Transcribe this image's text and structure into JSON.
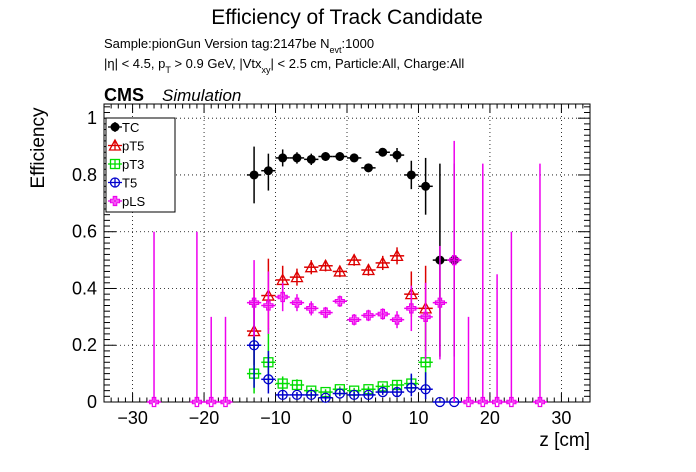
{
  "chart_data": {
    "type": "scatter",
    "title": "Efficiency of Track Candidate",
    "subtitle_line1": "Sample:pionGun   Version tag:2147be  N",
    "subtitle_line1_sub": "evt",
    "subtitle_line1_end": ":1000",
    "subtitle_line2_parts": [
      "|η| < 4.5, p",
      "T",
      " > 0.9 GeV, |Vtx",
      "xy",
      "| < 2.5 cm, Particle:All, Charge:All"
    ],
    "cms_label": "CMS",
    "simulation_label": "Simulation",
    "xlabel": "z [cm]",
    "ylabel": "Efficiency",
    "xlim": [
      -34,
      34
    ],
    "ylim": [
      0,
      1.05
    ],
    "xticks": [
      -30,
      -20,
      -10,
      0,
      10,
      20,
      30
    ],
    "xtick_labels": [
      "−30",
      "−20",
      "−10",
      "0",
      "10",
      "20",
      "30"
    ],
    "yticks": [
      0,
      0.2,
      0.4,
      0.6,
      0.8,
      1
    ],
    "ytick_labels": [
      "0",
      "0.2",
      "0.4",
      "0.6",
      "0.8",
      "1"
    ],
    "grid": true,
    "legend_position": "top-left",
    "series": [
      {
        "name": "TC",
        "color": "#000000",
        "marker": "filled-circle",
        "points": [
          {
            "x": -13,
            "y": 0.8,
            "yerr": [
              0.1,
              0.1
            ]
          },
          {
            "x": -11,
            "y": 0.815,
            "yerr": [
              0.07,
              0.06
            ]
          },
          {
            "x": -9,
            "y": 0.86,
            "yerr": [
              0.03,
              0.03
            ]
          },
          {
            "x": -7,
            "y": 0.86,
            "yerr": [
              0.02,
              0.02
            ]
          },
          {
            "x": -5,
            "y": 0.855,
            "yerr": [
              0.02,
              0.02
            ]
          },
          {
            "x": -3,
            "y": 0.865,
            "yerr": [
              0.015,
              0.015
            ]
          },
          {
            "x": -1,
            "y": 0.865,
            "yerr": [
              0.015,
              0.015
            ]
          },
          {
            "x": 1,
            "y": 0.86,
            "yerr": [
              0.015,
              0.015
            ]
          },
          {
            "x": 3,
            "y": 0.825,
            "yerr": [
              0.015,
              0.015
            ]
          },
          {
            "x": 5,
            "y": 0.88,
            "yerr": [
              0.015,
              0.015
            ]
          },
          {
            "x": 7,
            "y": 0.87,
            "yerr": [
              0.025,
              0.025
            ]
          },
          {
            "x": 9,
            "y": 0.8,
            "yerr": [
              0.05,
              0.05
            ]
          },
          {
            "x": 11,
            "y": 0.76,
            "yerr": [
              0.1,
              0.1
            ]
          },
          {
            "x": 13,
            "y": 0.5,
            "yerr": [
              0.34,
              0.34
            ]
          },
          {
            "x": 15,
            "y": 0.5,
            "yerr": [
              0.34,
              0.34
            ]
          }
        ]
      },
      {
        "name": "pT5",
        "color": "#dd0000",
        "marker": "open-triangle",
        "points": [
          {
            "x": -13,
            "y": 0.25,
            "yerr": [
              0.12,
              0.15
            ]
          },
          {
            "x": -11,
            "y": 0.375,
            "yerr": [
              0.12,
              0.13
            ]
          },
          {
            "x": -9,
            "y": 0.43,
            "yerr": [
              0.05,
              0.05
            ]
          },
          {
            "x": -7,
            "y": 0.44,
            "yerr": [
              0.03,
              0.03
            ]
          },
          {
            "x": -5,
            "y": 0.475,
            "yerr": [
              0.025,
              0.025
            ]
          },
          {
            "x": -3,
            "y": 0.48,
            "yerr": [
              0.02,
              0.02
            ]
          },
          {
            "x": -1,
            "y": 0.46,
            "yerr": [
              0.02,
              0.02
            ]
          },
          {
            "x": 1,
            "y": 0.5,
            "yerr": [
              0.02,
              0.02
            ]
          },
          {
            "x": 3,
            "y": 0.465,
            "yerr": [
              0.02,
              0.02
            ]
          },
          {
            "x": 5,
            "y": 0.49,
            "yerr": [
              0.025,
              0.025
            ]
          },
          {
            "x": 7,
            "y": 0.515,
            "yerr": [
              0.03,
              0.03
            ]
          },
          {
            "x": 9,
            "y": 0.38,
            "yerr": [
              0.08,
              0.08
            ]
          },
          {
            "x": 11,
            "y": 0.33,
            "yerr": [
              0.15,
              0.15
            ]
          }
        ]
      },
      {
        "name": "pT3",
        "color": "#00dd00",
        "marker": "open-square",
        "points": [
          {
            "x": -13,
            "y": 0.1,
            "yerr": [
              0.07,
              0.13
            ]
          },
          {
            "x": -11,
            "y": 0.14,
            "yerr": [
              0.08,
              0.12
            ]
          },
          {
            "x": -9,
            "y": 0.065,
            "yerr": [
              0.025,
              0.025
            ]
          },
          {
            "x": -7,
            "y": 0.06,
            "yerr": [
              0.02,
              0.02
            ]
          },
          {
            "x": -5,
            "y": 0.04,
            "yerr": [
              0.01,
              0.01
            ]
          },
          {
            "x": -3,
            "y": 0.035,
            "yerr": [
              0.01,
              0.01
            ]
          },
          {
            "x": -1,
            "y": 0.045,
            "yerr": [
              0.01,
              0.01
            ]
          },
          {
            "x": 1,
            "y": 0.04,
            "yerr": [
              0.01,
              0.01
            ]
          },
          {
            "x": 3,
            "y": 0.045,
            "yerr": [
              0.01,
              0.01
            ]
          },
          {
            "x": 5,
            "y": 0.055,
            "yerr": [
              0.01,
              0.01
            ]
          },
          {
            "x": 7,
            "y": 0.06,
            "yerr": [
              0.015,
              0.015
            ]
          },
          {
            "x": 9,
            "y": 0.065,
            "yerr": [
              0.03,
              0.03
            ]
          },
          {
            "x": 11,
            "y": 0.14,
            "yerr": [
              0.1,
              0.14
            ]
          }
        ]
      },
      {
        "name": "T5",
        "color": "#0000cc",
        "marker": "open-circle",
        "points": [
          {
            "x": -13,
            "y": 0.2,
            "yerr": [
              0.15,
              0.17
            ]
          },
          {
            "x": -11,
            "y": 0.08,
            "yerr": [
              0.05,
              0.1
            ]
          },
          {
            "x": -9,
            "y": 0.025,
            "yerr": [
              0.012,
              0.015
            ]
          },
          {
            "x": -7,
            "y": 0.025,
            "yerr": [
              0.01,
              0.01
            ]
          },
          {
            "x": -5,
            "y": 0.025,
            "yerr": [
              0.01,
              0.01
            ]
          },
          {
            "x": -3,
            "y": 0.015,
            "yerr": [
              0.008,
              0.008
            ]
          },
          {
            "x": -1,
            "y": 0.03,
            "yerr": [
              0.01,
              0.01
            ]
          },
          {
            "x": 1,
            "y": 0.025,
            "yerr": [
              0.01,
              0.01
            ]
          },
          {
            "x": 3,
            "y": 0.025,
            "yerr": [
              0.01,
              0.01
            ]
          },
          {
            "x": 5,
            "y": 0.035,
            "yerr": [
              0.01,
              0.01
            ]
          },
          {
            "x": 7,
            "y": 0.035,
            "yerr": [
              0.015,
              0.015
            ]
          },
          {
            "x": 9,
            "y": 0.05,
            "yerr": [
              0.03,
              0.05
            ]
          },
          {
            "x": 11,
            "y": 0.045,
            "yerr": [
              0.035,
              0.06
            ]
          },
          {
            "x": 13,
            "y": 0.0,
            "yerr": [
              0.0,
              0.0
            ]
          },
          {
            "x": 15,
            "y": 0.0,
            "yerr": [
              0.0,
              0.0
            ]
          }
        ]
      },
      {
        "name": "pLS",
        "color": "#ee00ee",
        "marker": "open-cross",
        "points": [
          {
            "x": -27,
            "y": 0.0,
            "yerr": [
              0.0,
              0.6
            ]
          },
          {
            "x": -21,
            "y": 0.0,
            "yerr": [
              0.0,
              0.6
            ]
          },
          {
            "x": -19,
            "y": 0.0,
            "yerr": [
              0.0,
              0.3
            ]
          },
          {
            "x": -17,
            "y": 0.0,
            "yerr": [
              0.0,
              0.3
            ]
          },
          {
            "x": -13,
            "y": 0.35,
            "yerr": [
              0.12,
              0.15
            ]
          },
          {
            "x": -11,
            "y": 0.34,
            "yerr": [
              0.1,
              0.12
            ]
          },
          {
            "x": -9,
            "y": 0.37,
            "yerr": [
              0.05,
              0.05
            ]
          },
          {
            "x": -7,
            "y": 0.35,
            "yerr": [
              0.03,
              0.03
            ]
          },
          {
            "x": -5,
            "y": 0.33,
            "yerr": [
              0.025,
              0.025
            ]
          },
          {
            "x": -3,
            "y": 0.315,
            "yerr": [
              0.02,
              0.02
            ]
          },
          {
            "x": -1,
            "y": 0.355,
            "yerr": [
              0.02,
              0.02
            ]
          },
          {
            "x": 1,
            "y": 0.29,
            "yerr": [
              0.02,
              0.02
            ]
          },
          {
            "x": 3,
            "y": 0.305,
            "yerr": [
              0.02,
              0.02
            ]
          },
          {
            "x": 5,
            "y": 0.31,
            "yerr": [
              0.02,
              0.02
            ]
          },
          {
            "x": 7,
            "y": 0.29,
            "yerr": [
              0.03,
              0.03
            ]
          },
          {
            "x": 9,
            "y": 0.33,
            "yerr": [
              0.08,
              0.08
            ]
          },
          {
            "x": 11,
            "y": 0.3,
            "yerr": [
              0.15,
              0.12
            ]
          },
          {
            "x": 13,
            "y": 0.35,
            "yerr": [
              0.2,
              0.2
            ]
          },
          {
            "x": 15,
            "y": 0.5,
            "yerr": [
              0.5,
              0.42
            ]
          },
          {
            "x": 17,
            "y": 0.0,
            "yerr": [
              0.0,
              0.3
            ]
          },
          {
            "x": 19,
            "y": 0.0,
            "yerr": [
              0.0,
              0.84
            ]
          },
          {
            "x": 21,
            "y": 0.0,
            "yerr": [
              0.0,
              0.45
            ]
          },
          {
            "x": 23,
            "y": 0.0,
            "yerr": [
              0.0,
              0.6
            ]
          },
          {
            "x": 27,
            "y": 0.0,
            "yerr": [
              0.0,
              0.84
            ]
          }
        ]
      }
    ]
  }
}
